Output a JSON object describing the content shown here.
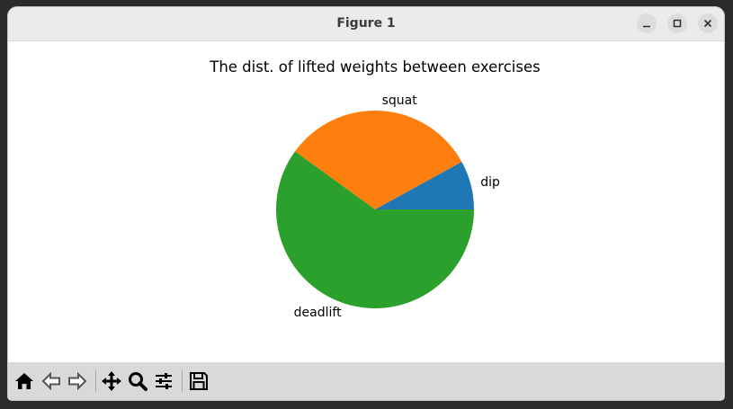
{
  "window": {
    "title": "Figure 1",
    "controls": [
      "minimize",
      "maximize",
      "close"
    ]
  },
  "toolbar": {
    "tools": [
      "home-icon",
      "back-icon",
      "forward-icon",
      "pan-icon",
      "zoom-icon",
      "configure-icon",
      "save-icon"
    ]
  },
  "chart_data": {
    "type": "pie",
    "title": "The dist. of lifted weights between exercises",
    "labels": [
      "dip",
      "squat",
      "deadlift"
    ],
    "values": [
      8,
      32,
      60
    ],
    "colors": [
      "#1f77b4",
      "#ff7f0e",
      "#2ca02c"
    ],
    "start_angle": 0,
    "direction": "counterclockwise"
  }
}
